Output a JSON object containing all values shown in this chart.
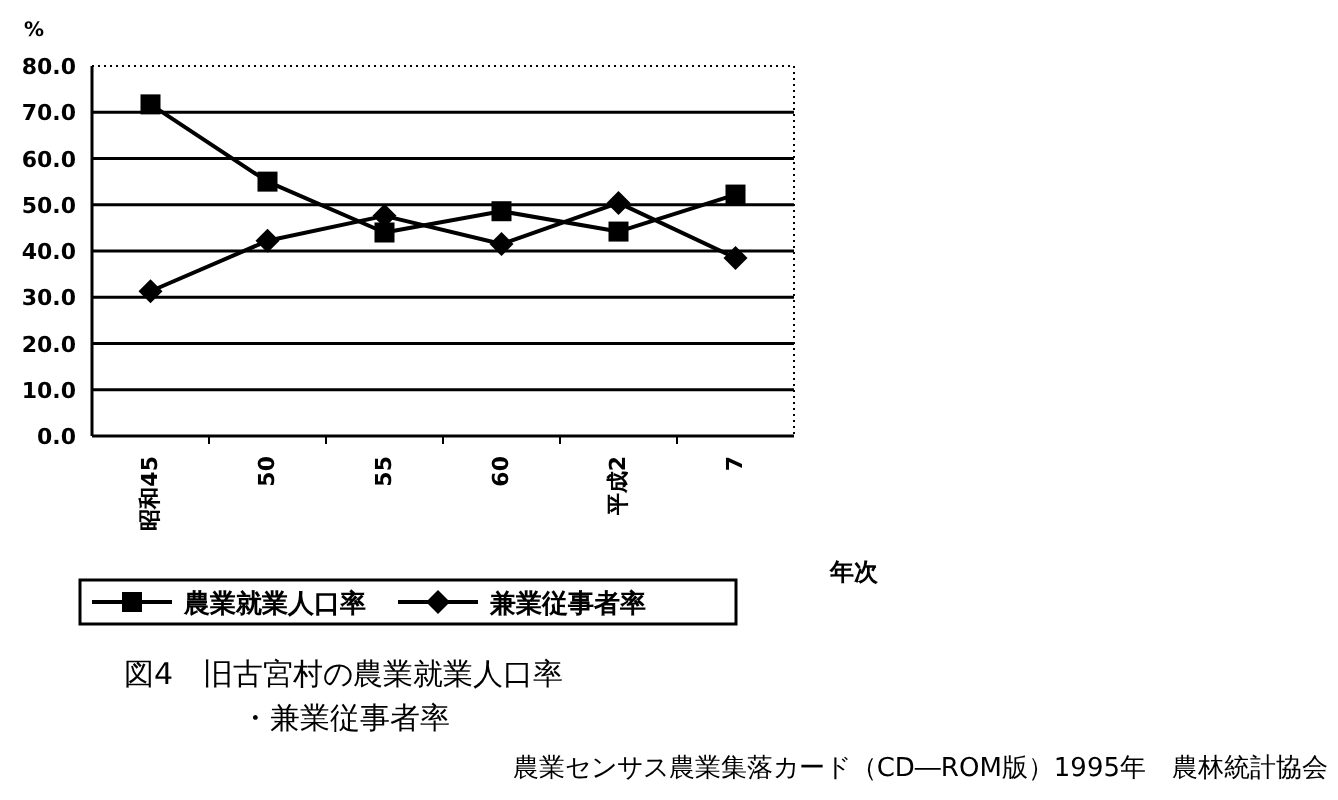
{
  "chart_data": {
    "type": "line",
    "title": "図4　旧古宮村の農業就業人口率",
    "subtitle": "・兼業従事者率",
    "ylabel": "%",
    "xlabel": "年次",
    "annotations": [
      "農業センサス農業集落カード（CD―ROM版）1995年　農林統計協会"
    ],
    "categories": [
      "昭和45",
      "50",
      "55",
      "60",
      "平成2",
      "7"
    ],
    "series": [
      {
        "name": "農業就業人口率",
        "color": "#000000",
        "marker": "square",
        "values": [
          71.7,
          55.0,
          44.0,
          48.6,
          44.2,
          52.2
        ]
      },
      {
        "name": "兼業従事者率",
        "color": "#000000",
        "marker": "diamond",
        "values": [
          31.3,
          42.2,
          47.6,
          41.5,
          50.4,
          38.5
        ]
      }
    ],
    "ylim": [
      0,
      80
    ],
    "yticks": [
      {
        "value": 0,
        "label": "0.0"
      },
      {
        "value": 10,
        "label": "10.0"
      },
      {
        "value": 20,
        "label": "20.0"
      },
      {
        "value": 30,
        "label": "30.0"
      },
      {
        "value": 40,
        "label": "40.0"
      },
      {
        "value": 50,
        "label": "50.0"
      },
      {
        "value": 60,
        "label": "60.0"
      },
      {
        "value": 70,
        "label": "70.0"
      },
      {
        "value": 80,
        "label": "80.0"
      }
    ],
    "grid": "y",
    "legend": "bottom",
    "line_style": "solid"
  }
}
